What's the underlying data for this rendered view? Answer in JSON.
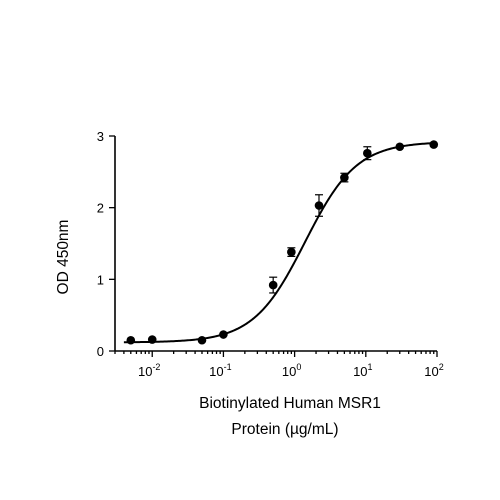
{
  "chart_data": {
    "type": "scatter",
    "xscale": "log",
    "xlim": [
      0.003,
      100
    ],
    "ylim": [
      0,
      3
    ],
    "xticks": [
      {
        "value": 0.01,
        "base": "10",
        "exp": "-2"
      },
      {
        "value": 0.1,
        "base": "10",
        "exp": "-1"
      },
      {
        "value": 1,
        "base": "10",
        "exp": "0"
      },
      {
        "value": 10,
        "base": "10",
        "exp": "1"
      },
      {
        "value": 100,
        "base": "10",
        "exp": "2"
      }
    ],
    "yticks": [
      "0",
      "1",
      "2",
      "3"
    ],
    "xlabel_line1": "Biotinylated Human MSR1",
    "xlabel_line2": "Protein (µg/mL)",
    "ylabel": "OD 450nm",
    "grid": false,
    "points": [
      {
        "x": 0.005,
        "y": 0.15,
        "err": 0.0
      },
      {
        "x": 0.01,
        "y": 0.16,
        "err": 0.0
      },
      {
        "x": 0.05,
        "y": 0.15,
        "err": 0.0
      },
      {
        "x": 0.1,
        "y": 0.23,
        "err": 0.0
      },
      {
        "x": 0.5,
        "y": 0.92,
        "err": 0.11
      },
      {
        "x": 0.9,
        "y": 1.38,
        "err": 0.06
      },
      {
        "x": 2.2,
        "y": 2.03,
        "err": 0.15
      },
      {
        "x": 5.0,
        "y": 2.42,
        "err": 0.06
      },
      {
        "x": 10.5,
        "y": 2.76,
        "err": 0.09
      },
      {
        "x": 30.0,
        "y": 2.85,
        "err": 0.0
      },
      {
        "x": 90.0,
        "y": 2.88,
        "err": 0.0
      }
    ],
    "fit": {
      "model": "4PL",
      "bottom": 0.12,
      "top": 2.92,
      "ec50": 1.4,
      "hill": 1.2,
      "range": [
        0.004,
        100
      ]
    }
  }
}
